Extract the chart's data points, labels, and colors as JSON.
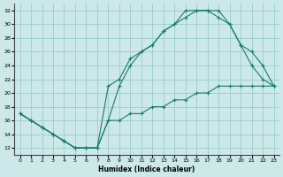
{
  "xlabel": "Humidex (Indice chaleur)",
  "bg_color": "#cce8e8",
  "grid_color": "#99cccc",
  "line_color": "#1a7a6e",
  "xlim": [
    -0.5,
    23.5
  ],
  "ylim": [
    11,
    33
  ],
  "xticks": [
    0,
    1,
    2,
    3,
    4,
    5,
    6,
    7,
    8,
    9,
    10,
    11,
    12,
    13,
    14,
    15,
    16,
    17,
    18,
    19,
    20,
    21,
    22,
    23
  ],
  "yticks": [
    12,
    14,
    16,
    18,
    20,
    22,
    24,
    26,
    28,
    30,
    32
  ],
  "curve1_x": [
    0,
    1,
    2,
    3,
    4,
    5,
    6,
    7,
    8,
    9,
    10,
    11,
    12,
    13,
    14,
    15,
    16,
    17,
    18,
    19,
    20,
    21,
    22,
    23
  ],
  "curve1_y": [
    17,
    16,
    15,
    14,
    13,
    12,
    12,
    12,
    21,
    22,
    25,
    26,
    27,
    29,
    30,
    32,
    32,
    32,
    32,
    30,
    27,
    24,
    22,
    21
  ],
  "curve2_x": [
    0,
    1,
    2,
    3,
    4,
    5,
    6,
    7,
    8,
    9,
    10,
    11,
    12,
    13,
    14,
    15,
    16,
    17,
    18,
    19,
    20,
    21,
    22,
    23
  ],
  "curve2_y": [
    17,
    16,
    15,
    14,
    13,
    12,
    12,
    12,
    16,
    21,
    24,
    26,
    27,
    29,
    30,
    31,
    32,
    32,
    31,
    30,
    27,
    26,
    24,
    21
  ],
  "curve3_x": [
    0,
    1,
    2,
    3,
    4,
    5,
    6,
    7,
    8,
    9,
    10,
    11,
    12,
    13,
    14,
    15,
    16,
    17,
    18,
    19,
    20,
    21,
    22,
    23
  ],
  "curve3_y": [
    17,
    16,
    15,
    14,
    13,
    12,
    12,
    12,
    16,
    16,
    17,
    17,
    18,
    18,
    19,
    19,
    20,
    20,
    21,
    21,
    21,
    21,
    21,
    21
  ]
}
